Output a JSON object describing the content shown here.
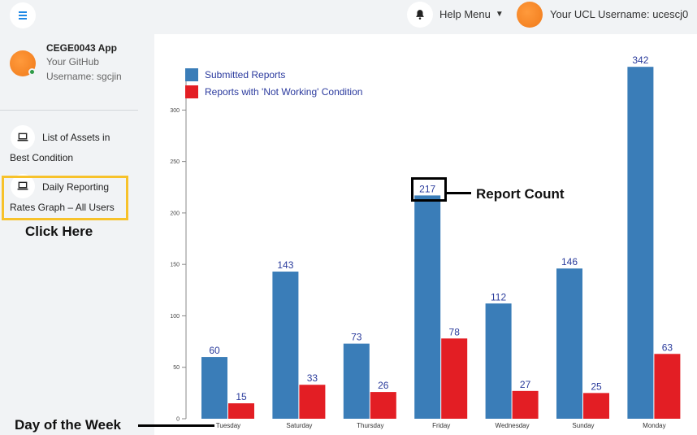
{
  "topbar": {
    "help_menu_label": "Help Menu",
    "username_label": "Your UCL Username: ucescj0"
  },
  "sidebar": {
    "app_name": "CEGE0043 App",
    "github_line1": "Your GitHub",
    "github_line2": "Username: sgcjin",
    "items": [
      {
        "line1": "List of Assets in",
        "line2": "Best Condition"
      },
      {
        "line1": "Daily Reporting",
        "line2": "Rates Graph – All Users"
      }
    ]
  },
  "annotations": {
    "click_here": "Click Here",
    "report_count": "Report Count",
    "day_of_week": "Day of the Week"
  },
  "colors": {
    "submitted": "#3a7db8",
    "not_working": "#e31e24",
    "highlight": "#f7c22a"
  },
  "chart_data": {
    "type": "bar",
    "categories": [
      "Tuesday",
      "Saturday",
      "Thursday",
      "Friday",
      "Wednesday",
      "Sunday",
      "Monday"
    ],
    "series": [
      {
        "name": "Submitted Reports",
        "values": [
          60,
          143,
          73,
          217,
          112,
          146,
          342
        ]
      },
      {
        "name": "Reports with 'Not Working' Condition",
        "values": [
          15,
          33,
          26,
          78,
          27,
          25,
          63
        ]
      }
    ],
    "yticks": [
      "0",
      "50",
      "100",
      "150",
      "200",
      "250",
      "300"
    ],
    "ylim": [
      0,
      342
    ],
    "legend_position": "top-left"
  }
}
